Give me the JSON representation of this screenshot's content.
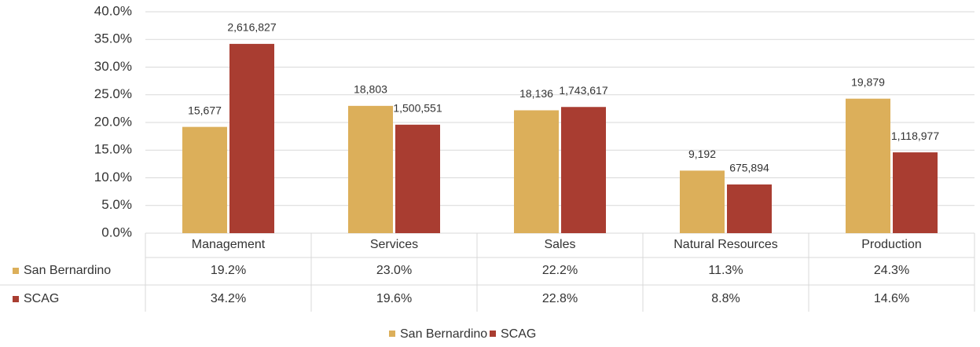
{
  "chart_data": {
    "type": "bar",
    "categories": [
      "Management",
      "Services",
      "Sales",
      "Natural Resources",
      "Production"
    ],
    "series": [
      {
        "name": "San Bernardino",
        "color": "#dcaf5a",
        "values": [
          19.2,
          23.0,
          22.2,
          11.3,
          24.3
        ],
        "value_labels": [
          "19.2%",
          "23.0%",
          "22.2%",
          "11.3%",
          "24.3%"
        ],
        "data_labels": [
          "15,677",
          "18,803",
          "18,136",
          "9,192",
          "19,879"
        ]
      },
      {
        "name": "SCAG",
        "color": "#a93d31",
        "values": [
          34.2,
          19.6,
          22.8,
          8.8,
          14.6
        ],
        "value_labels": [
          "34.2%",
          "19.6%",
          "22.8%",
          "8.8%",
          "14.6%"
        ],
        "data_labels": [
          "2,616,827",
          "1,500,551",
          "1,743,617",
          "675,894",
          "1,118,977"
        ]
      }
    ],
    "ylim": [
      0,
      40
    ],
    "yticks": [
      {
        "value": 0,
        "label": "0.0%"
      },
      {
        "value": 5,
        "label": "5.0%"
      },
      {
        "value": 10,
        "label": "10.0%"
      },
      {
        "value": 15,
        "label": "15.0%"
      },
      {
        "value": 20,
        "label": "20.0%"
      },
      {
        "value": 25,
        "label": "25.0%"
      },
      {
        "value": 30,
        "label": "30.0%"
      },
      {
        "value": 35,
        "label": "35.0%"
      },
      {
        "value": 40,
        "label": "40.0%"
      }
    ],
    "grid": true,
    "legend": "bottom",
    "data_table": true
  }
}
